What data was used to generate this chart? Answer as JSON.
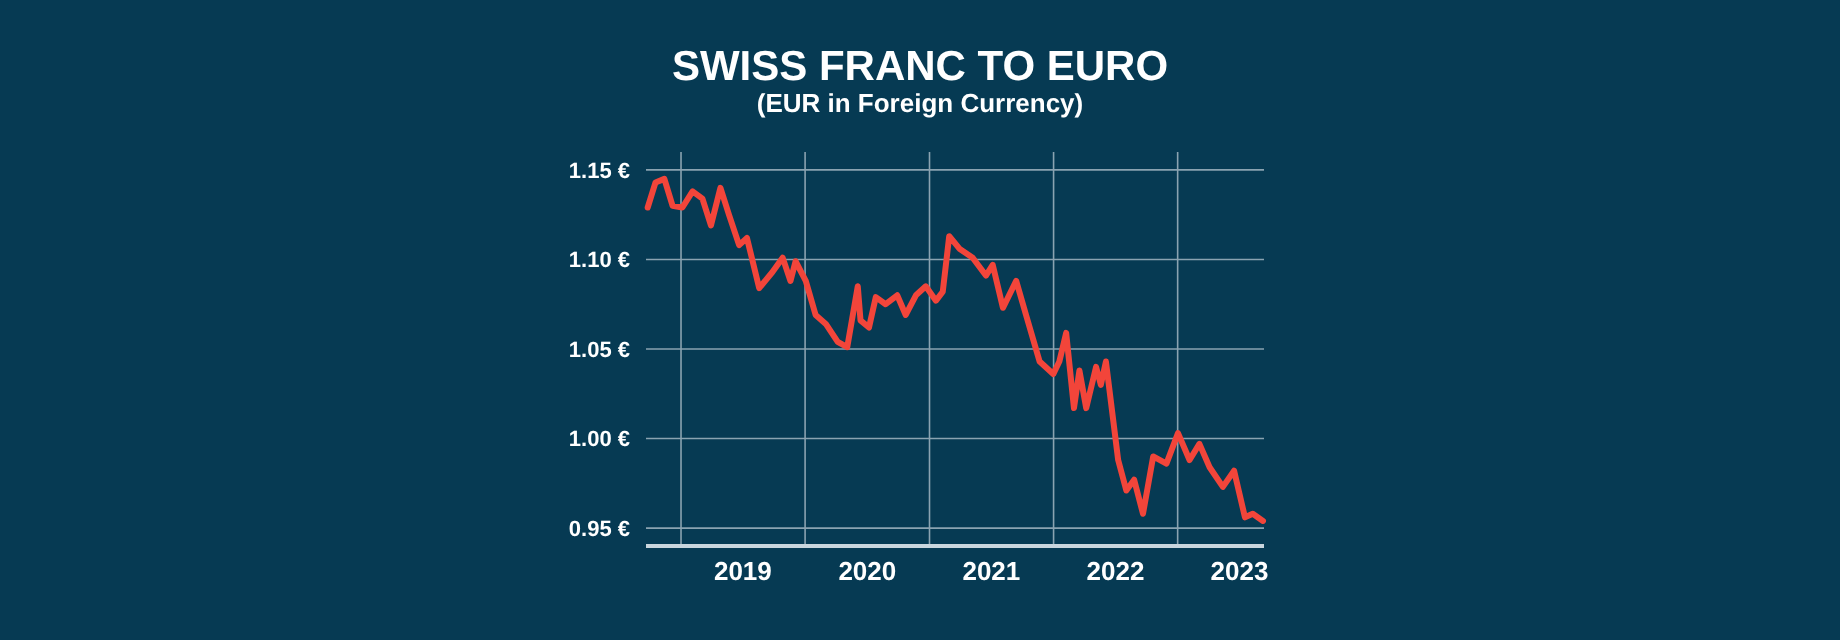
{
  "chart_data": {
    "type": "line",
    "title": "SWISS FRANC TO EURO",
    "subtitle": "(EUR in Foreign Currency)",
    "x": [
      "2018-09-25",
      "2018-10-18",
      "2018-11-13",
      "2018-12-07",
      "2019-01-05",
      "2019-02-04",
      "2019-03-05",
      "2019-03-30",
      "2019-04-27",
      "2019-05-22",
      "2019-06-21",
      "2019-07-14",
      "2019-08-19",
      "2019-09-27",
      "2019-10-27",
      "2019-11-19",
      "2019-12-04",
      "2020-01-03",
      "2020-02-01",
      "2020-03-02",
      "2020-04-06",
      "2020-05-04",
      "2020-06-04",
      "2020-06-12",
      "2020-07-07",
      "2020-07-27",
      "2020-08-25",
      "2020-09-28",
      "2020-10-23",
      "2020-11-22",
      "2020-12-21",
      "2021-01-20",
      "2021-02-09",
      "2021-02-28",
      "2021-03-30",
      "2021-05-08",
      "2021-06-16",
      "2021-07-06",
      "2021-08-05",
      "2021-09-13",
      "2021-10-12",
      "2021-11-21",
      "2021-12-31",
      "2022-01-18",
      "2022-02-07",
      "2022-03-02",
      "2022-03-18",
      "2022-04-07",
      "2022-05-06",
      "2022-05-20",
      "2022-06-04",
      "2022-07-10",
      "2022-08-03",
      "2022-08-26",
      "2022-09-21",
      "2022-10-21",
      "2022-11-29",
      "2023-01-02",
      "2023-02-05",
      "2023-03-06",
      "2023-04-05",
      "2023-05-14",
      "2023-06-16",
      "2023-07-18",
      "2023-08-10",
      "2023-09-09"
    ],
    "series": [
      {
        "color": "#f2453a",
        "values": [
          1.129,
          1.143,
          1.145,
          1.13,
          1.129,
          1.138,
          1.134,
          1.119,
          1.14,
          1.125,
          1.108,
          1.112,
          1.084,
          1.093,
          1.101,
          1.088,
          1.099,
          1.088,
          1.069,
          1.064,
          1.054,
          1.051,
          1.085,
          1.066,
          1.062,
          1.079,
          1.075,
          1.08,
          1.069,
          1.08,
          1.085,
          1.077,
          1.082,
          1.113,
          1.106,
          1.101,
          1.091,
          1.097,
          1.073,
          1.088,
          1.069,
          1.043,
          1.036,
          1.043,
          1.059,
          1.017,
          1.038,
          1.017,
          1.04,
          1.03,
          1.043,
          0.988,
          0.971,
          0.977,
          0.958,
          0.99,
          0.986,
          1.003,
          0.988,
          0.997,
          0.984,
          0.973,
          0.982,
          0.956,
          0.958,
          0.954
        ]
      }
    ],
    "xlim": [
      "2018-09-20",
      "2023-09-12"
    ],
    "xticks": [
      {
        "value": "2019-01-01",
        "label": null
      },
      {
        "value": "2019-07-02",
        "label": "2019"
      },
      {
        "value": "2020-01-01",
        "label": null
      },
      {
        "value": "2020-07-02",
        "label": "2020"
      },
      {
        "value": "2021-01-01",
        "label": null
      },
      {
        "value": "2021-07-02",
        "label": "2021"
      },
      {
        "value": "2022-01-01",
        "label": null
      },
      {
        "value": "2022-07-02",
        "label": "2022"
      },
      {
        "value": "2023-01-01",
        "label": null
      },
      {
        "value": "2023-07-02",
        "label": "2023"
      }
    ],
    "ylim": [
      0.94,
      1.16
    ],
    "yticks": [
      {
        "value": 0.95,
        "label": "0.95 €"
      },
      {
        "value": 1.0,
        "label": "1.00 €"
      },
      {
        "value": 1.05,
        "label": "1.05 €"
      },
      {
        "value": 1.1,
        "label": "1.10 €"
      },
      {
        "value": 1.15,
        "label": "1.15 €"
      }
    ],
    "grid": true,
    "marker": "none",
    "line_style": "solid"
  }
}
